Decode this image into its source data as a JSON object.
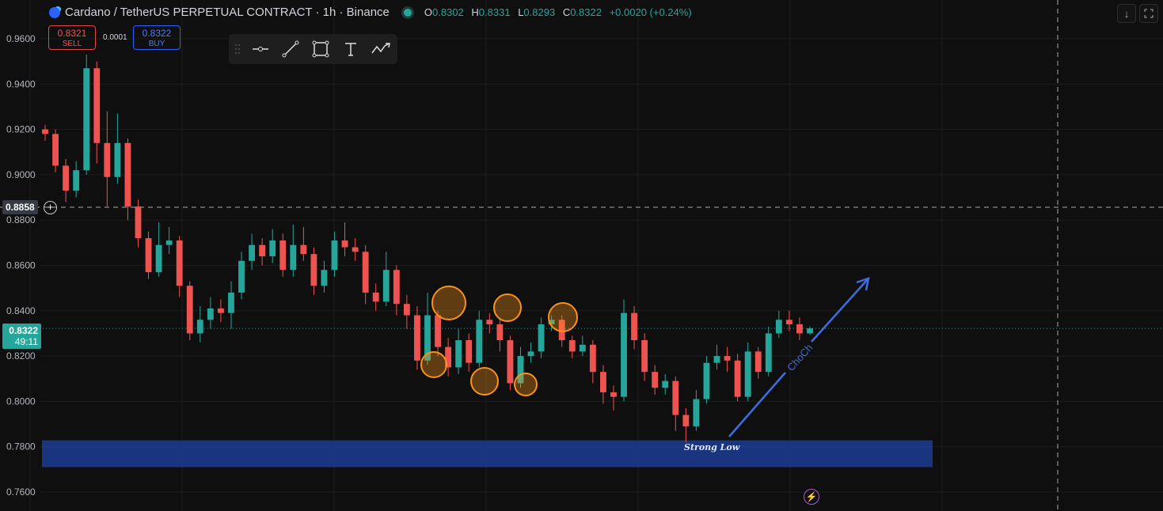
{
  "header": {
    "symbol_title": "Cardano / TetherUS PERPETUAL CONTRACT · 1h · Binance",
    "ohlc": {
      "o_label": "O",
      "o": "0.8302",
      "h_label": "H",
      "h": "0.8331",
      "l_label": "L",
      "l": "0.8293",
      "c_label": "C",
      "c": "0.8322",
      "change": "+0.0020 (+0.24%)"
    }
  },
  "trade": {
    "sell_price": "0.8321",
    "sell_label": "SELL",
    "spread": "0.0001",
    "buy_price": "0.8322",
    "buy_label": "BUY"
  },
  "toolbar": {
    "icons": [
      "drag-handle-icon",
      "horizontal-line-icon",
      "trend-line-icon",
      "rectangle-icon",
      "text-icon",
      "path-icon"
    ]
  },
  "corner_buttons": {
    "icons": [
      "arrow-down-icon",
      "fullscreen-icon"
    ]
  },
  "crosshair": {
    "price_label": "0.8858"
  },
  "current_price": {
    "price": "0.8322",
    "countdown": "49:11"
  },
  "colors": {
    "up": "#26a69a",
    "down": "#ef5350",
    "zone": "#1e3a8a",
    "annotation": "#3b6fe0",
    "circle": "#f7931a"
  },
  "chart_data": {
    "type": "candlestick",
    "ylim": [
      0.755,
      0.965
    ],
    "yticks": [
      "0.9600",
      "0.9400",
      "0.9200",
      "0.9000",
      "0.8800",
      "0.8600",
      "0.8400",
      "0.8200",
      "0.8000",
      "0.7800",
      "0.7600"
    ],
    "grid": true,
    "candles": [
      [
        0.92,
        0.922,
        0.915,
        0.918
      ],
      [
        0.918,
        0.92,
        0.901,
        0.904
      ],
      [
        0.904,
        0.907,
        0.888,
        0.893
      ],
      [
        0.893,
        0.906,
        0.89,
        0.902
      ],
      [
        0.902,
        0.953,
        0.9,
        0.947
      ],
      [
        0.947,
        0.95,
        0.905,
        0.914
      ],
      [
        0.914,
        0.928,
        0.886,
        0.899
      ],
      [
        0.899,
        0.927,
        0.896,
        0.914
      ],
      [
        0.914,
        0.916,
        0.88,
        0.886
      ],
      [
        0.886,
        0.889,
        0.868,
        0.872
      ],
      [
        0.872,
        0.875,
        0.854,
        0.857
      ],
      [
        0.857,
        0.879,
        0.855,
        0.869
      ],
      [
        0.869,
        0.877,
        0.865,
        0.871
      ],
      [
        0.871,
        0.873,
        0.846,
        0.851
      ],
      [
        0.851,
        0.853,
        0.827,
        0.83
      ],
      [
        0.83,
        0.842,
        0.826,
        0.836
      ],
      [
        0.836,
        0.846,
        0.832,
        0.841
      ],
      [
        0.841,
        0.845,
        0.835,
        0.839
      ],
      [
        0.839,
        0.853,
        0.832,
        0.848
      ],
      [
        0.848,
        0.866,
        0.845,
        0.862
      ],
      [
        0.862,
        0.874,
        0.858,
        0.869
      ],
      [
        0.869,
        0.872,
        0.86,
        0.864
      ],
      [
        0.864,
        0.876,
        0.861,
        0.871
      ],
      [
        0.871,
        0.874,
        0.855,
        0.858
      ],
      [
        0.858,
        0.878,
        0.855,
        0.869
      ],
      [
        0.869,
        0.877,
        0.862,
        0.865
      ],
      [
        0.865,
        0.868,
        0.847,
        0.851
      ],
      [
        0.851,
        0.862,
        0.848,
        0.858
      ],
      [
        0.858,
        0.875,
        0.855,
        0.871
      ],
      [
        0.871,
        0.879,
        0.864,
        0.868
      ],
      [
        0.868,
        0.872,
        0.862,
        0.866
      ],
      [
        0.866,
        0.869,
        0.843,
        0.848
      ],
      [
        0.848,
        0.852,
        0.84,
        0.844
      ],
      [
        0.844,
        0.866,
        0.842,
        0.858
      ],
      [
        0.858,
        0.86,
        0.838,
        0.843
      ],
      [
        0.843,
        0.847,
        0.832,
        0.838
      ],
      [
        0.838,
        0.842,
        0.814,
        0.818
      ],
      [
        0.818,
        0.848,
        0.816,
        0.838
      ],
      [
        0.838,
        0.84,
        0.82,
        0.824
      ],
      [
        0.824,
        0.828,
        0.811,
        0.815
      ],
      [
        0.815,
        0.832,
        0.812,
        0.827
      ],
      [
        0.827,
        0.83,
        0.813,
        0.817
      ],
      [
        0.817,
        0.84,
        0.815,
        0.836
      ],
      [
        0.836,
        0.839,
        0.83,
        0.834
      ],
      [
        0.834,
        0.837,
        0.822,
        0.827
      ],
      [
        0.827,
        0.829,
        0.805,
        0.808
      ],
      [
        0.808,
        0.824,
        0.806,
        0.82
      ],
      [
        0.82,
        0.826,
        0.817,
        0.822
      ],
      [
        0.822,
        0.837,
        0.819,
        0.834
      ],
      [
        0.834,
        0.838,
        0.831,
        0.836
      ],
      [
        0.836,
        0.838,
        0.824,
        0.827
      ],
      [
        0.827,
        0.829,
        0.819,
        0.822
      ],
      [
        0.822,
        0.829,
        0.82,
        0.825
      ],
      [
        0.825,
        0.827,
        0.808,
        0.813
      ],
      [
        0.813,
        0.816,
        0.799,
        0.804
      ],
      [
        0.804,
        0.807,
        0.796,
        0.802
      ],
      [
        0.802,
        0.845,
        0.8,
        0.839
      ],
      [
        0.839,
        0.842,
        0.823,
        0.827
      ],
      [
        0.827,
        0.83,
        0.809,
        0.813
      ],
      [
        0.813,
        0.816,
        0.803,
        0.806
      ],
      [
        0.806,
        0.812,
        0.803,
        0.809
      ],
      [
        0.809,
        0.811,
        0.787,
        0.794
      ],
      [
        0.794,
        0.797,
        0.782,
        0.789
      ],
      [
        0.789,
        0.805,
        0.787,
        0.801
      ],
      [
        0.801,
        0.82,
        0.799,
        0.817
      ],
      [
        0.817,
        0.825,
        0.814,
        0.82
      ],
      [
        0.82,
        0.824,
        0.813,
        0.818
      ],
      [
        0.818,
        0.821,
        0.8,
        0.802
      ],
      [
        0.802,
        0.826,
        0.8,
        0.822
      ],
      [
        0.822,
        0.824,
        0.81,
        0.813
      ],
      [
        0.813,
        0.833,
        0.811,
        0.83
      ],
      [
        0.83,
        0.84,
        0.828,
        0.836
      ],
      [
        0.836,
        0.84,
        0.831,
        0.834
      ],
      [
        0.834,
        0.837,
        0.827,
        0.83
      ],
      [
        0.83,
        0.8331,
        0.8293,
        0.8322
      ]
    ],
    "crosshair_price": 0.8858,
    "last_price": 0.8322,
    "annotations": {
      "zone": {
        "label": "Strong Low",
        "from": 0.771,
        "to": 0.7828
      },
      "trend_arrow": {
        "label": "ChoCh"
      },
      "circle_count": 6
    }
  }
}
